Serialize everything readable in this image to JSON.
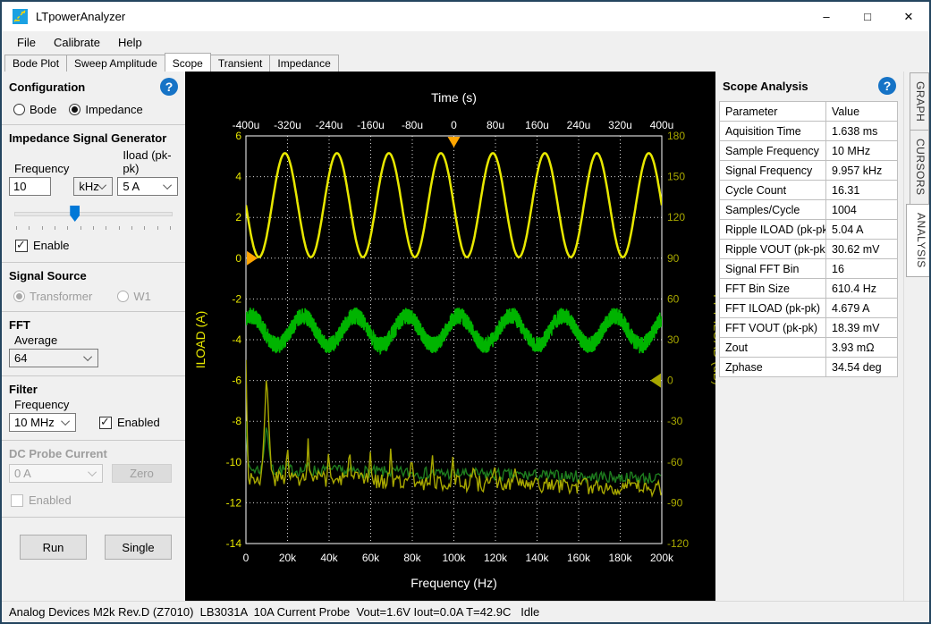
{
  "window": {
    "title": "LTpowerAnalyzer",
    "controls": {
      "minimize": "–",
      "maximize": "□",
      "close": "✕"
    }
  },
  "menu": {
    "items": [
      "File",
      "Calibrate",
      "Help"
    ]
  },
  "tabs": {
    "items": [
      "Bode Plot",
      "Sweep Amplitude",
      "Scope",
      "Transient",
      "Impedance"
    ],
    "active": "Scope"
  },
  "icons": {
    "help_glyph": "?",
    "check_glyph": "✓"
  },
  "sidebar": {
    "configuration": {
      "header": "Configuration",
      "bode_label": "Bode",
      "bode_checked": false,
      "impedance_label": "Impedance",
      "impedance_checked": true
    },
    "signal_generator": {
      "header": "Impedance Signal Generator",
      "frequency_label": "Frequency",
      "frequency_value": "10",
      "frequency_unit": "kHz",
      "iload_label": "Iload (pk-pk)",
      "iload_value": "5 A",
      "slider_percent": 38,
      "enable_label": "Enable",
      "enable_checked": true
    },
    "signal_source": {
      "header": "Signal Source",
      "transformer_label": "Transformer",
      "transformer_checked": true,
      "w1_label": "W1",
      "w1_checked": false,
      "disabled": true
    },
    "fft": {
      "header": "FFT",
      "average_label": "Average",
      "average_value": "64"
    },
    "filter": {
      "header": "Filter",
      "frequency_label": "Frequency",
      "frequency_value": "10 MHz",
      "enabled_label": "Enabled",
      "enabled_checked": true
    },
    "dc_probe": {
      "header": "DC Probe Current",
      "current_value": "0 A",
      "zero_label": "Zero",
      "enabled_label": "Enabled",
      "enabled_checked": false,
      "disabled": true
    },
    "run_label": "Run",
    "single_label": "Single"
  },
  "analysis_panel": {
    "title": "Scope Analysis",
    "columns": [
      "Parameter",
      "Value"
    ],
    "rows": [
      [
        "Aquisition Time",
        "1.638 ms"
      ],
      [
        "Sample Frequency",
        "10 MHz"
      ],
      [
        "Signal Frequency",
        "9.957 kHz"
      ],
      [
        "Cycle Count",
        "16.31"
      ],
      [
        "Samples/Cycle",
        "1004"
      ],
      [
        "Ripple ILOAD (pk-pk)",
        "5.04 A"
      ],
      [
        "Ripple VOUT (pk-pk)",
        "30.62 mV"
      ],
      [
        "Signal FFT Bin",
        "16"
      ],
      [
        "FFT Bin Size",
        "610.4 Hz"
      ],
      [
        "FFT ILOAD (pk-pk)",
        "4.679 A"
      ],
      [
        "FFT VOUT (pk-pk)",
        "18.39 mV"
      ],
      [
        "Zout",
        "3.93 mΩ"
      ],
      [
        "Zphase",
        "34.54 deg"
      ]
    ]
  },
  "side_tabs": {
    "items": [
      "GRAPH",
      "CURSORS",
      "ANALYSIS"
    ],
    "active": "ANALYSIS"
  },
  "status_bar": {
    "text": "Analog Devices M2k Rev.D (Z7010)  LB3031A  10A Current Probe  Vout=1.6V Iout=0.0A T=42.9C   Idle"
  },
  "chart_data": {
    "type": "line",
    "background": "#000000",
    "grid": true,
    "top_axis": {
      "label": "Time (s)",
      "range_us": [
        -400,
        400
      ],
      "ticks": [
        "-400u",
        "-320u",
        "-240u",
        "-160u",
        "-80u",
        "0",
        "80u",
        "160u",
        "240u",
        "320u",
        "400u"
      ]
    },
    "left_axis": {
      "label": "ILOAD (A)",
      "color": "#e8e800",
      "range": [
        -14,
        6
      ],
      "ticks": [
        6,
        4,
        2,
        0,
        -2,
        -4,
        -6,
        -8,
        -10,
        -12,
        -14
      ]
    },
    "right_axis": {
      "label": "FFT ILOAD (dB)",
      "color": "#a8a800",
      "range": [
        -120,
        180
      ],
      "ticks": [
        180,
        150,
        120,
        90,
        60,
        30,
        0,
        -30,
        -60,
        -90,
        -120
      ]
    },
    "bottom_axis": {
      "label": "Frequency (Hz)",
      "range_hz": [
        0,
        200000
      ],
      "ticks": [
        "0",
        "20k",
        "40k",
        "60k",
        "80k",
        "100k",
        "120k",
        "140k",
        "160k",
        "180k",
        "200k"
      ]
    },
    "series": [
      {
        "name": "ILOAD waveform",
        "color": "#e8e800",
        "type": "sine",
        "axis": "left/time",
        "center_a": 2.6,
        "amplitude_a": 2.55,
        "period_us": 100,
        "peak_at_us": -25,
        "min_a": 0.05,
        "max_a": 5.15
      },
      {
        "name": "VOUT ripple waveform",
        "color": "#00b400",
        "type": "noisy-sine",
        "axis": "left/time",
        "center_a": -3.55,
        "amplitude_a": 0.72,
        "noise_a": 0.42,
        "period_us": 100,
        "peak_at_us": 10
      },
      {
        "name": "FFT ILOAD spectrum",
        "color": "#a8a800",
        "type": "spectrum",
        "axis": "left/frequency",
        "fundamental_hz": 9957,
        "bin_hz": 610.4,
        "noise_floor_a": -10.75,
        "floor_slope": -0.55,
        "noise_a": 0.4,
        "harmonic_peaks_a": {
          "0": -5.0,
          "9957": -5.5,
          "19914": -8.6,
          "29871": -8.7,
          "39828": -9.2,
          "49785": -8.8,
          "59742": -9.3,
          "69699": -9.0,
          "79656": -9.4,
          "89613": -9.4,
          "99570": -9.6,
          "109527": -10.0,
          "119484": -10.1,
          "129441": -10.3
        }
      },
      {
        "name": "FFT VOUT spectrum",
        "color": "#1e7d1e",
        "type": "spectrum",
        "axis": "left/frequency",
        "fundamental_hz": 9957,
        "bin_hz": 610.4,
        "noise_floor_a": -10.35,
        "floor_slope": -0.45,
        "noise_a": 0.3,
        "harmonic_peaks_a": {
          "0": -8.0,
          "9957": -8.1,
          "19914": -9.9,
          "29871": -10.0,
          "39828": -10.1
        }
      }
    ],
    "markers": [
      {
        "name": "trigger-time-marker",
        "axis": "top",
        "value_us": 0,
        "color": "#ffa500"
      },
      {
        "name": "iload-zero-marker",
        "axis": "left",
        "value_a": 0,
        "color": "#ffa500"
      },
      {
        "name": "fft-zero-marker",
        "axis": "right",
        "value_db": 0,
        "color": "#a8a800"
      }
    ]
  }
}
